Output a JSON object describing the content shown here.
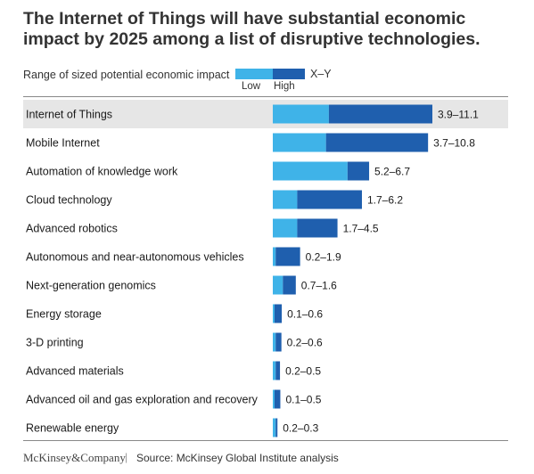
{
  "title": "The Internet of Things will have substantial economic impact by 2025 among a list of disruptive technologies.",
  "legend": {
    "label": "Range of sized potential economic impact",
    "range": "X–Y",
    "low": "Low",
    "high": "High"
  },
  "footer": {
    "company": "McKinsey&Company",
    "separator": "|",
    "source": "Source: McKinsey Global Institute analysis"
  },
  "colors": {
    "low": "#3fb3e8",
    "high": "#1f5fae",
    "highlight_row": "#e6e6e6"
  },
  "chart_data": {
    "type": "bar",
    "orientation": "horizontal",
    "stacked_range": true,
    "highlighted": "Internet of Things",
    "categories": [
      "Internet of Things",
      "Mobile Internet",
      "Automation of knowledge work",
      "Cloud technology",
      "Advanced robotics",
      "Autonomous and near-autonomous vehicles",
      "Next-generation genomics",
      "Energy storage",
      "3-D printing",
      "Advanced materials",
      "Advanced oil and gas exploration and recovery",
      "Renewable energy"
    ],
    "low": [
      3.9,
      3.7,
      5.2,
      1.7,
      1.7,
      0.2,
      0.7,
      0.1,
      0.2,
      0.2,
      0.1,
      0.2
    ],
    "high": [
      11.1,
      10.8,
      6.7,
      6.2,
      4.5,
      1.9,
      1.6,
      0.6,
      0.6,
      0.5,
      0.5,
      0.3
    ],
    "labels": [
      "3.9–11.1",
      "3.7–10.8",
      "5.2–6.7",
      "1.7–6.2",
      "1.7–4.5",
      "0.2–1.9",
      "0.7–1.6",
      "0.1–0.6",
      "0.2–0.6",
      "0.2–0.5",
      "0.1–0.5",
      "0.2–0.3"
    ],
    "xlim": [
      0,
      11.1
    ]
  }
}
